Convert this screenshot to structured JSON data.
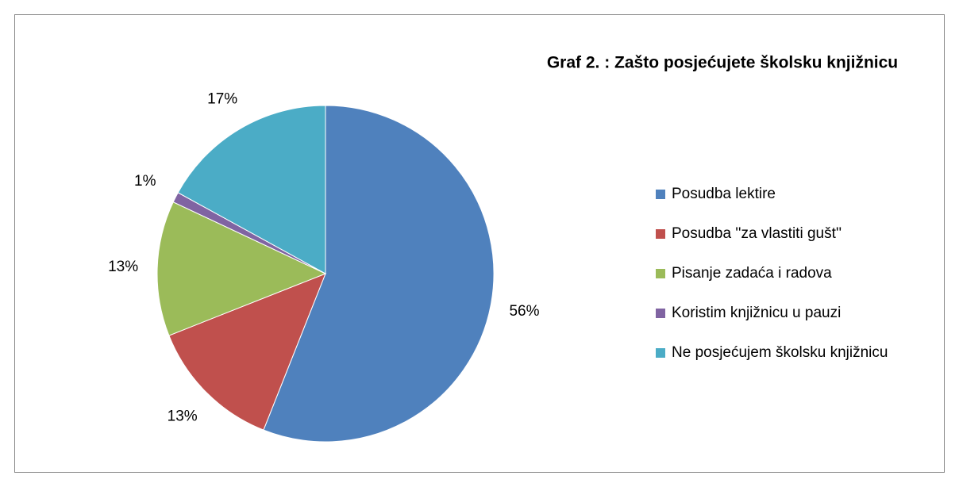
{
  "chart_data": {
    "type": "pie",
    "title": "Graf 2. : Zašto posjećujete školsku knjižnicu",
    "categories": [
      "Posudba lektire",
      "Posudba ''za vlastiti gušt''",
      "Pisanje zadaća i radova",
      "Koristim knjižnicu u pauzi",
      "Ne posjećujem školsku knjižnicu"
    ],
    "values": [
      56,
      13,
      13,
      1,
      17
    ],
    "value_labels": [
      "56%",
      "13%",
      "13%",
      "1%",
      "17%"
    ],
    "colors": [
      "#4f81bd",
      "#c0504d",
      "#9bbb59",
      "#8064a2",
      "#4bacc6"
    ],
    "legend": "right"
  }
}
